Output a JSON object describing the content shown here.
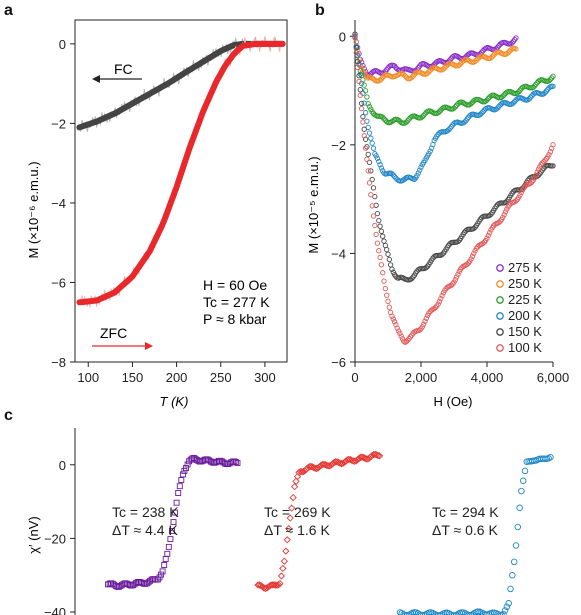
{
  "panels": [
    {
      "label": "a"
    },
    {
      "label": "b"
    },
    {
      "label": "c"
    }
  ],
  "chart_data": [
    {
      "panel": "a",
      "type": "line",
      "xlabel": "T (K)",
      "ylabel": "M (×10⁻⁶ e.m.u.)",
      "xlim": [
        85,
        325
      ],
      "ylim": [
        -8,
        0.6
      ],
      "xticks": [
        100,
        150,
        200,
        250,
        300
      ],
      "yticks": [
        0,
        -2,
        -4,
        -6,
        -8
      ],
      "grid": false,
      "series": [
        {
          "name": "FC",
          "color": "#444444",
          "x": [
            90,
            110,
            130,
            150,
            170,
            190,
            210,
            230,
            250,
            265,
            275,
            290,
            310,
            320
          ],
          "y": [
            -2.1,
            -1.95,
            -1.75,
            -1.5,
            -1.25,
            -1.0,
            -0.72,
            -0.45,
            -0.18,
            -0.03,
            0.0,
            0.0,
            0.0,
            0.0
          ]
        },
        {
          "name": "ZFC",
          "color": "#e8282b",
          "x": [
            90,
            110,
            130,
            150,
            170,
            185,
            200,
            215,
            230,
            245,
            255,
            265,
            275,
            290,
            310,
            320
          ],
          "y": [
            -6.5,
            -6.45,
            -6.25,
            -5.85,
            -5.2,
            -4.5,
            -3.6,
            -2.6,
            -1.7,
            -0.95,
            -0.55,
            -0.25,
            -0.05,
            0.0,
            0.0,
            0.0
          ]
        }
      ],
      "annotations": {
        "fc_label": "FC",
        "zfc_label": "ZFC",
        "h": "H = 60 Oe",
        "tc": "Tc = 277 K",
        "p": "P ≈ 8 kbar"
      }
    },
    {
      "panel": "b",
      "type": "scatter",
      "xlabel": "H (Oe)",
      "ylabel": "M (×10⁻⁵ e.m.u.)",
      "xlim": [
        0,
        6000
      ],
      "ylim": [
        -6,
        0.3
      ],
      "xticks": [
        0,
        2000,
        4000,
        6000
      ],
      "xtick_labels": [
        "0",
        "2,000",
        "4,000",
        "6,000"
      ],
      "yticks": [
        0,
        -2,
        -4,
        -6
      ],
      "grid": false,
      "legend": "bottom-right",
      "series": [
        {
          "name": "275 K",
          "color": "#8b2fc9",
          "x": [
            0,
            150,
            400,
            800,
            1200,
            1600,
            2000,
            2500,
            3000,
            3500,
            4000,
            4500,
            4900
          ],
          "y": [
            0,
            -0.45,
            -0.7,
            -0.65,
            -0.55,
            -0.65,
            -0.55,
            -0.5,
            -0.4,
            -0.35,
            -0.25,
            -0.15,
            -0.05
          ]
        },
        {
          "name": "250 K",
          "color": "#f28c28",
          "x": [
            0,
            150,
            400,
            800,
            1200,
            1600,
            2000,
            2500,
            3000,
            3500,
            4000,
            4500,
            4900
          ],
          "y": [
            0,
            -0.5,
            -0.8,
            -0.78,
            -0.7,
            -0.75,
            -0.68,
            -0.6,
            -0.52,
            -0.45,
            -0.38,
            -0.3,
            -0.25
          ]
        },
        {
          "name": "225 K",
          "color": "#2e9e2e",
          "x": [
            0,
            150,
            400,
            700,
            1000,
            1400,
            1800,
            2200,
            2700,
            3200,
            3700,
            4200,
            4700,
            5200,
            5600,
            6000
          ],
          "y": [
            0,
            -0.6,
            -1.25,
            -1.5,
            -1.55,
            -1.58,
            -1.5,
            -1.42,
            -1.35,
            -1.25,
            -1.2,
            -1.12,
            -1.05,
            -0.95,
            -0.85,
            -0.75
          ]
        },
        {
          "name": "200 K",
          "color": "#2387c8",
          "x": [
            0,
            150,
            350,
            600,
            900,
            1200,
            1500,
            1800,
            2100,
            2400,
            2800,
            3300,
            3800,
            4300,
            4800,
            5300,
            6000
          ],
          "y": [
            0,
            -0.7,
            -1.5,
            -2.2,
            -2.5,
            -2.6,
            -2.65,
            -2.6,
            -2.35,
            -1.9,
            -1.7,
            -1.55,
            -1.4,
            -1.3,
            -1.2,
            -1.12,
            -0.95
          ]
        },
        {
          "name": "150 K",
          "color": "#4a4a4a",
          "x": [
            0,
            150,
            300,
            500,
            700,
            900,
            1100,
            1300,
            1500,
            1800,
            2200,
            2700,
            3200,
            3700,
            4200,
            4700,
            5200,
            5600,
            6000
          ],
          "y": [
            0,
            -0.9,
            -1.8,
            -2.6,
            -3.3,
            -3.85,
            -4.25,
            -4.45,
            -4.5,
            -4.4,
            -4.2,
            -3.95,
            -3.7,
            -3.45,
            -3.2,
            -2.95,
            -2.7,
            -2.5,
            -2.35
          ]
        },
        {
          "name": "100 K",
          "color": "#e25a5a",
          "x": [
            0,
            150,
            300,
            500,
            700,
            900,
            1100,
            1300,
            1500,
            1700,
            2000,
            2400,
            2800,
            3300,
            3800,
            4300,
            4800,
            5300,
            5700,
            6000
          ],
          "y": [
            0,
            -1.0,
            -2.0,
            -3.0,
            -3.9,
            -4.6,
            -5.1,
            -5.45,
            -5.6,
            -5.55,
            -5.35,
            -5.0,
            -4.65,
            -4.25,
            -3.85,
            -3.45,
            -3.05,
            -2.7,
            -2.35,
            -2.0
          ]
        }
      ]
    },
    {
      "panel": "c",
      "type": "scatter",
      "ylabel": "χ′ (nV)",
      "ylim": [
        -40,
        10
      ],
      "yticks": [
        0,
        -20,
        -40
      ],
      "grid": false,
      "series": [
        {
          "color": "#6a1b9a",
          "x": [
            0,
            0.08,
            0.16,
            0.24,
            0.32,
            0.38,
            0.42,
            0.46,
            0.5,
            0.54,
            0.58,
            0.62,
            0.66,
            0.72,
            0.8,
            0.88,
            1.0
          ],
          "y": [
            -32.5,
            -32.8,
            -32.5,
            -32.2,
            -31.8,
            -31,
            -29,
            -24,
            -16,
            -8,
            -2,
            1,
            1.5,
            1.2,
            1,
            0.6,
            0.5
          ]
        },
        {
          "color": "#e53935",
          "x": [
            0,
            0.06,
            0.12,
            0.18,
            0.22,
            0.26,
            0.3,
            0.34,
            0.4,
            0.5,
            0.6,
            0.7,
            0.8,
            0.9,
            1.0
          ],
          "y": [
            -33,
            -33.2,
            -33,
            -32,
            -26,
            -15,
            -6,
            -2,
            -1,
            -0.5,
            0.2,
            0.8,
            1.4,
            2,
            2.8
          ]
        },
        {
          "color": "#1e88c8",
          "x": [
            0,
            0.15,
            0.3,
            0.45,
            0.55,
            0.62,
            0.68,
            0.72,
            0.76,
            0.8,
            0.84,
            0.88,
            0.94,
            1.0
          ],
          "y": [
            -40.5,
            -40.5,
            -40.6,
            -40.5,
            -40.2,
            -40.6,
            -40.5,
            -38,
            -25,
            -8,
            0.5,
            1.5,
            1.2,
            2.5
          ]
        }
      ],
      "annotations": [
        {
          "tc": "Tc = 238 K",
          "dt": "ΔT ≈ 4.4 K"
        },
        {
          "tc": "Tc = 269 K",
          "dt": "ΔT ≈ 1.6 K"
        },
        {
          "tc": "Tc = 294 K",
          "dt": "ΔT ≈ 0.6 K"
        }
      ]
    }
  ]
}
